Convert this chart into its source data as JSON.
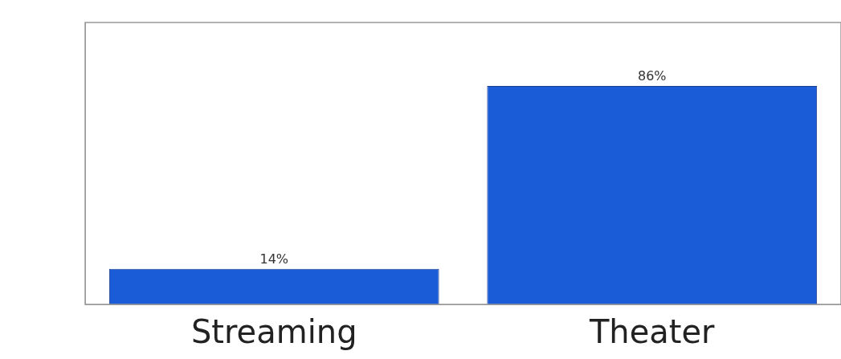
{
  "chart_data": {
    "type": "bar",
    "categories": [
      "Streaming",
      "Theater"
    ],
    "values": [
      14,
      86
    ],
    "color": "#1a5bd8",
    "value_labels": [
      "14%",
      "86%"
    ],
    "ylim": [
      0,
      111
    ],
    "grid": false,
    "legend": false
  }
}
